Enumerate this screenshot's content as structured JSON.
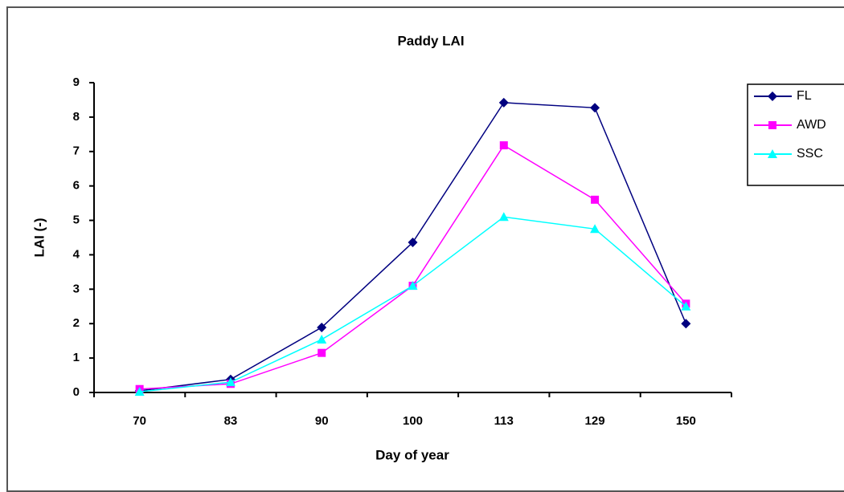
{
  "chart_data": {
    "type": "line",
    "title": "Paddy LAI",
    "x_label": "Day of year",
    "y_label": "LAI (-)",
    "categories": [
      "70",
      "83",
      "90",
      "100",
      "113",
      "129",
      "150"
    ],
    "series": [
      {
        "name": "FL",
        "color": "#000080",
        "marker": "diamond",
        "values": [
          0.05,
          0.38,
          1.89,
          4.36,
          8.42,
          8.27,
          2.0
        ]
      },
      {
        "name": "AWD",
        "color": "#ff00ff",
        "marker": "square",
        "values": [
          0.1,
          0.25,
          1.15,
          3.1,
          7.18,
          5.6,
          2.58
        ]
      },
      {
        "name": "SSC",
        "color": "#00ffff",
        "marker": "triangle",
        "values": [
          0.02,
          0.3,
          1.54,
          3.1,
          5.1,
          4.75,
          2.5
        ]
      }
    ],
    "ylim": [
      0,
      9
    ],
    "yticks": [
      0,
      1,
      2,
      3,
      4,
      5,
      6,
      7,
      8,
      9
    ],
    "grid": false,
    "legend": "right"
  }
}
